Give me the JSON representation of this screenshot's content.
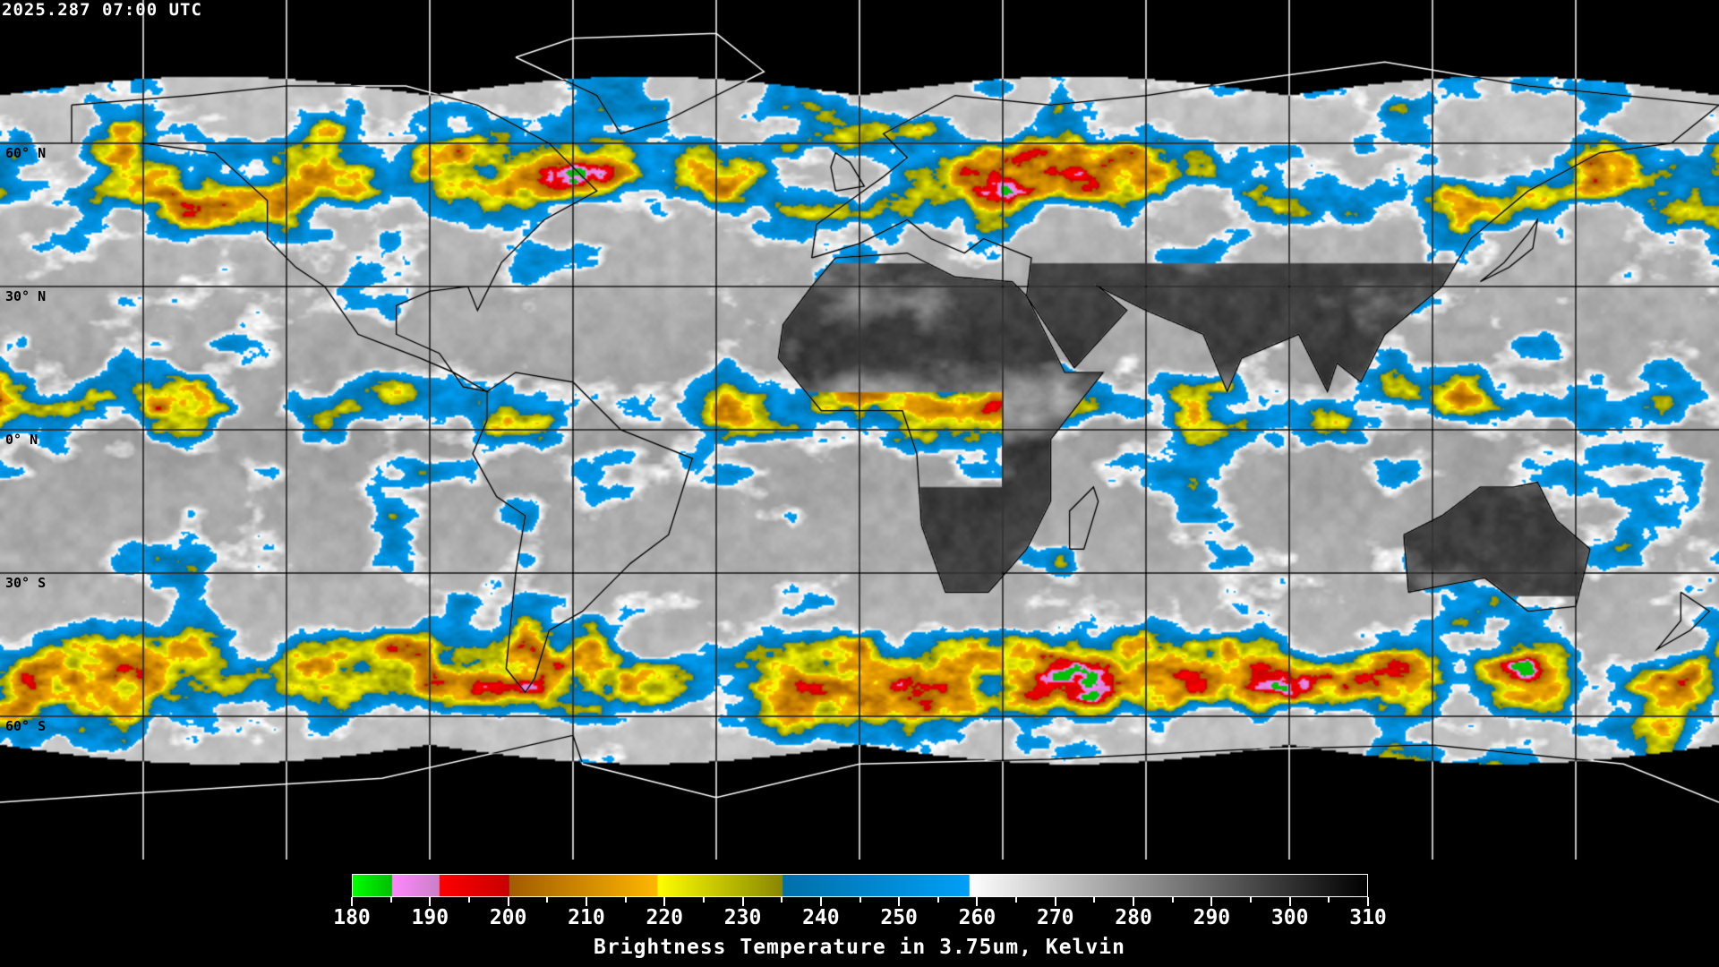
{
  "timestamp": "2025.287 07:00 UTC",
  "map": {
    "projection": "equirectangular",
    "lon_range": [
      -180,
      180
    ],
    "lat_range": [
      -90,
      90
    ],
    "grid_spacing_deg": 30,
    "lat_labels": [
      {
        "lat": 60,
        "label": "60° N"
      },
      {
        "lat": 30,
        "label": "30° N"
      },
      {
        "lat": 0,
        "label": "0° N"
      },
      {
        "lat": -30,
        "label": "30° S"
      },
      {
        "lat": -60,
        "label": "60° S"
      }
    ]
  },
  "colorbar": {
    "title": "Brightness Temperature in 3.75um, Kelvin",
    "min": 180,
    "max": 310,
    "ticks": [
      "180",
      "190",
      "200",
      "210",
      "220",
      "230",
      "240",
      "250",
      "260",
      "270",
      "280",
      "290",
      "300",
      "310"
    ],
    "segments": [
      {
        "from": 180,
        "to": 185,
        "start": "#00ff00",
        "end": "#00c000"
      },
      {
        "from": 185,
        "to": 191,
        "start": "#ff88ff",
        "end": "#cc80c8"
      },
      {
        "from": 191,
        "to": 200,
        "start": "#ff0000",
        "end": "#c80000"
      },
      {
        "from": 200,
        "to": 219,
        "start": "#a05c00",
        "end": "#ffb800"
      },
      {
        "from": 219,
        "to": 235,
        "start": "#ffff00",
        "end": "#888800"
      },
      {
        "from": 235,
        "to": 259,
        "start": "#0070a8",
        "end": "#00a0f8"
      },
      {
        "from": 259,
        "to": 310,
        "start": "#ffffff",
        "end": "#000000"
      }
    ]
  }
}
